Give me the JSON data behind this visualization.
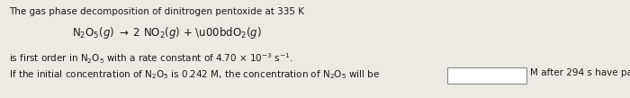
{
  "bg_color": "#edeae5",
  "text_color": "#1a1a1a",
  "line1_fontsize": 7.5,
  "equation_fontsize": 8.5,
  "line3_fontsize": 7.5,
  "line4_fontsize": 7.5,
  "box_color": "#ffffff",
  "box_edge_color": "#888888"
}
